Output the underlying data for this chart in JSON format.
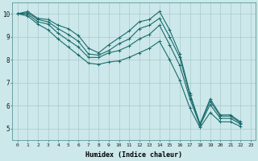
{
  "xlabel": "Humidex (Indice chaleur)",
  "ylabel": "",
  "background_color": "#cce8ea",
  "grid_color": "#aac8cc",
  "line_color": "#1a6b6b",
  "xlim": [
    -0.5,
    23.5
  ],
  "ylim": [
    4.5,
    10.5
  ],
  "yticks": [
    5,
    6,
    7,
    8,
    9,
    10
  ],
  "xticks": [
    0,
    1,
    2,
    3,
    4,
    5,
    6,
    7,
    8,
    9,
    10,
    11,
    12,
    13,
    14,
    15,
    16,
    17,
    18,
    19,
    20,
    21,
    22,
    23
  ],
  "series": [
    [
      10.0,
      10.1,
      9.8,
      9.75,
      9.5,
      9.35,
      9.05,
      8.5,
      8.3,
      8.65,
      8.95,
      9.25,
      9.65,
      9.75,
      10.1,
      9.3,
      8.25,
      6.55,
      5.2,
      6.3,
      5.6,
      5.6,
      5.3
    ],
    [
      10.0,
      10.05,
      9.75,
      9.65,
      9.35,
      9.1,
      8.8,
      8.25,
      8.2,
      8.4,
      8.7,
      8.9,
      9.35,
      9.5,
      9.8,
      9.0,
      8.1,
      6.45,
      5.2,
      6.2,
      5.55,
      5.55,
      5.25
    ],
    [
      10.0,
      9.98,
      9.65,
      9.55,
      9.15,
      8.85,
      8.55,
      8.1,
      8.1,
      8.3,
      8.4,
      8.6,
      8.9,
      9.1,
      9.5,
      8.65,
      7.75,
      6.3,
      5.15,
      6.05,
      5.45,
      5.45,
      5.2
    ],
    [
      10.0,
      9.9,
      9.55,
      9.3,
      8.9,
      8.55,
      8.2,
      7.85,
      7.8,
      7.9,
      7.95,
      8.1,
      8.3,
      8.5,
      8.8,
      8.0,
      7.1,
      5.9,
      5.05,
      5.7,
      5.3,
      5.3,
      5.1
    ]
  ]
}
